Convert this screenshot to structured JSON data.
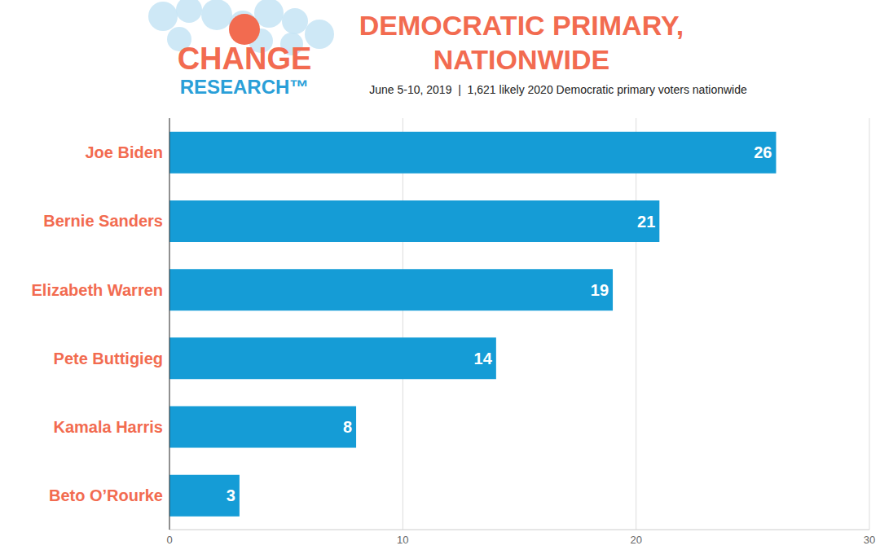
{
  "chart_data": {
    "type": "bar",
    "title": "DEMOCRATIC PRIMARY, NATIONWIDE",
    "subtitle": "June 5-10, 2019  |  1,621 likely 2020 Democratic primary voters nationwide",
    "logo": [
      "CHANGE",
      "RESEARCH™"
    ],
    "orientation": "horizontal",
    "categories": [
      "Joe Biden",
      "Bernie Sanders",
      "Elizabeth Warren",
      "Pete Buttigieg",
      "Kamala Harris",
      "Beto O’Rourke"
    ],
    "values": [
      26,
      21,
      19,
      14,
      8,
      3
    ],
    "color": "#159cd6",
    "xlim": [
      0,
      30
    ],
    "xticks": [
      0,
      10,
      20,
      30
    ],
    "grid": true,
    "data_labels": true
  }
}
